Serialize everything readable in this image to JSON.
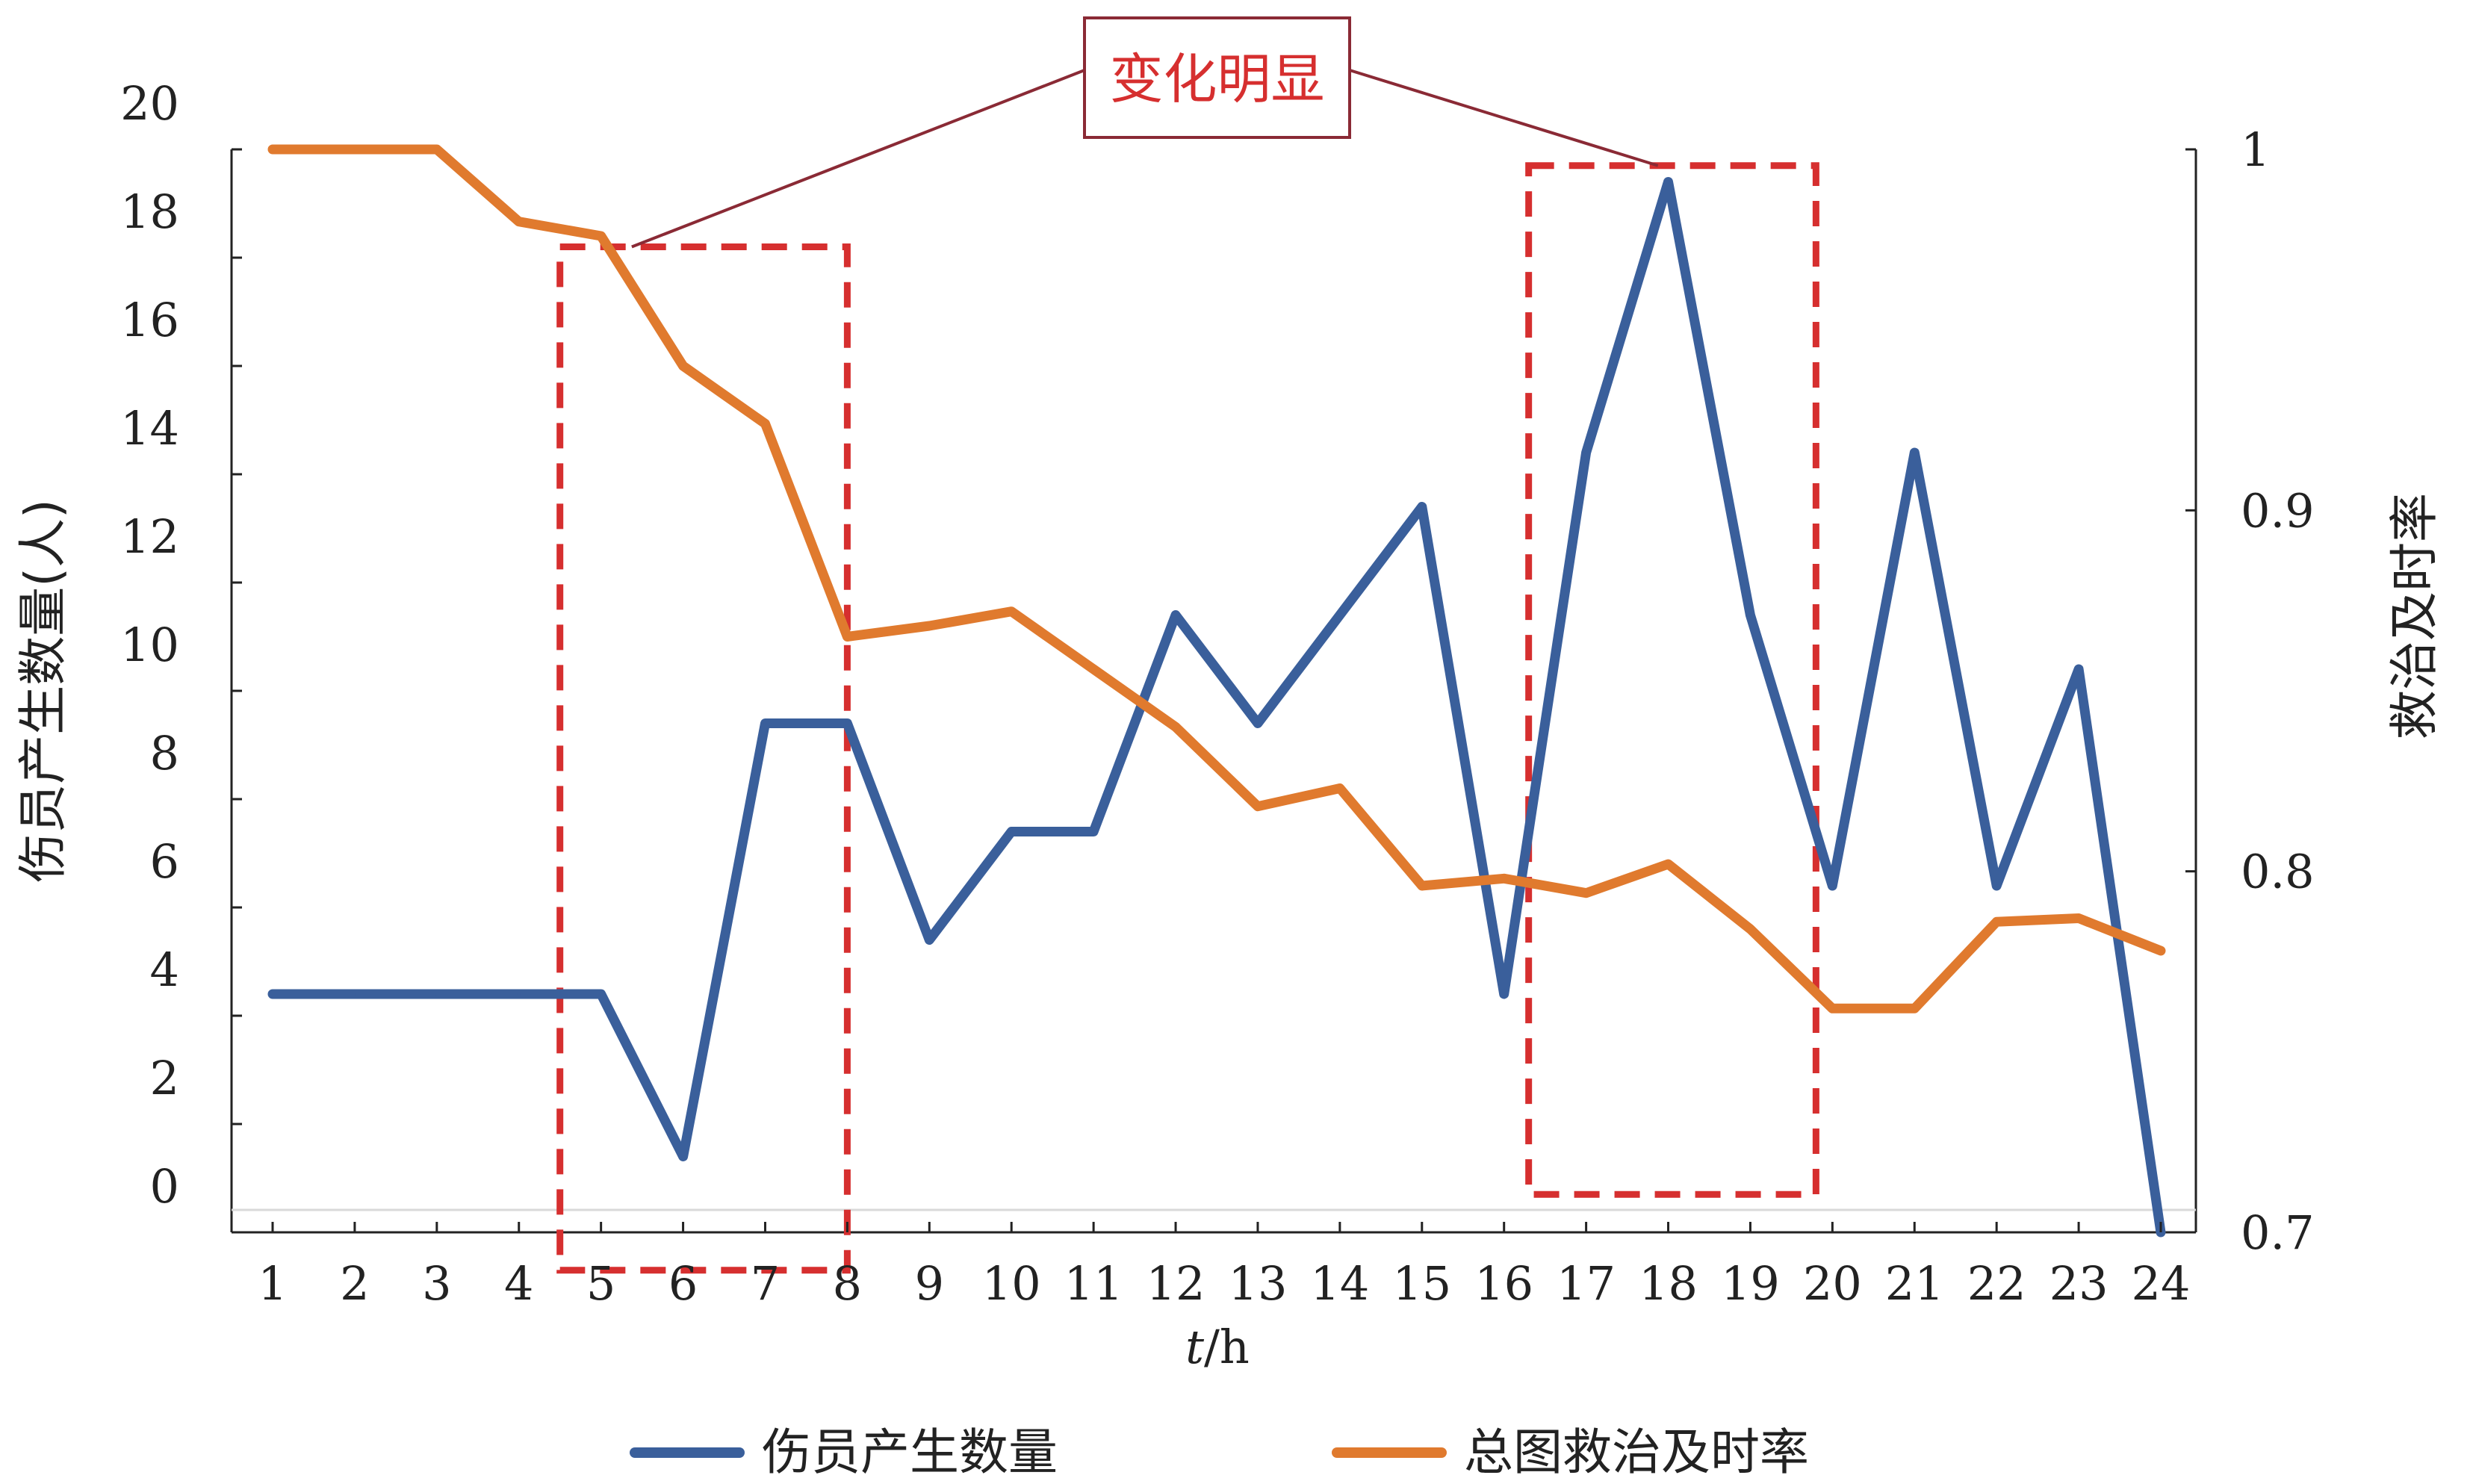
{
  "chart_data": {
    "type": "line",
    "xlabel": "t/h",
    "ylabel_left": "伤员产生数量(人)",
    "ylabel_right": "救治及时率",
    "x": [
      1,
      2,
      3,
      4,
      5,
      6,
      7,
      8,
      9,
      10,
      11,
      12,
      13,
      14,
      15,
      16,
      17,
      18,
      19,
      20,
      21,
      22,
      23,
      24
    ],
    "ylim_left": [
      0,
      20
    ],
    "yticks_left": [
      "0",
      "2",
      "4",
      "6",
      "8",
      "10",
      "12",
      "14",
      "16",
      "18",
      "20"
    ],
    "ylim_right": [
      0.7,
      1.0
    ],
    "yticks_right": [
      "0.7",
      "0.8",
      "0.9",
      "1"
    ],
    "series": [
      {
        "name": "伤员产生数量",
        "axis": "left",
        "color": "#3a5f9b",
        "values": [
          4.4,
          4.4,
          4.4,
          4.4,
          4.4,
          1.4,
          9.4,
          9.4,
          5.4,
          7.4,
          7.4,
          11.4,
          9.4,
          11.4,
          13.4,
          4.4,
          14.4,
          19.4,
          11.4,
          6.4,
          14.4,
          6.4,
          10.4,
          0
        ]
      },
      {
        "name": "总图救治及时率",
        "axis": "right",
        "color": "#e07a2e",
        "values": [
          1.0,
          1.0,
          1.0,
          0.98,
          0.976,
          0.94,
          0.924,
          0.865,
          0.868,
          0.872,
          0.856,
          0.84,
          0.818,
          0.823,
          0.796,
          0.798,
          0.794,
          0.802,
          0.784,
          0.762,
          0.762,
          0.786,
          0.787,
          0.778
        ]
      }
    ],
    "legend_position": "bottom",
    "annotation": {
      "text": "变化明显",
      "text_color": "#d62f2f",
      "box_color": "#d62f2f",
      "highlight_ranges": [
        [
          5,
          8
        ],
        [
          17,
          20
        ]
      ]
    },
    "grid": false
  }
}
